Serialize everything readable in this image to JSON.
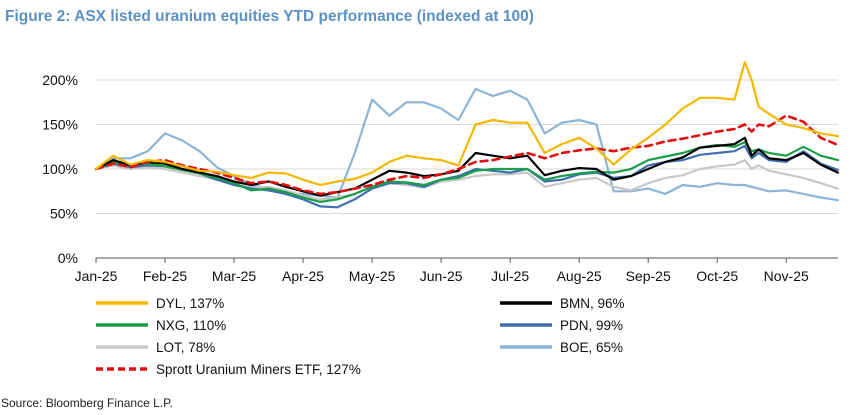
{
  "title": "Figure 2: ASX listed uranium equities YTD performance (indexed at 100)",
  "source": "Source: Bloomberg Finance L.P.",
  "chart_data": {
    "type": "line",
    "title": "Figure 2: ASX listed uranium equities YTD performance (indexed at 100)",
    "xlabel": "",
    "ylabel": "",
    "xlim": [
      0,
      10.75
    ],
    "ylim": [
      0,
      200
    ],
    "x_ticks": [
      "Jan-25",
      "Feb-25",
      "Mar-25",
      "Apr-25",
      "May-25",
      "Jun-25",
      "Jul-25",
      "Aug-25",
      "Sep-25",
      "Oct-25",
      "Nov-25"
    ],
    "y_ticks": [
      0,
      50,
      100,
      150,
      200
    ],
    "y_tick_labels": [
      "0%",
      "50%",
      "100%",
      "150%",
      "200%"
    ],
    "legend_position": "bottom",
    "series": [
      {
        "name": "DYL",
        "label": "DYL, 137%",
        "color": "#f5b800",
        "dashed": false,
        "x": [
          0,
          0.25,
          0.5,
          0.75,
          1,
          1.25,
          1.5,
          1.75,
          2,
          2.25,
          2.5,
          2.75,
          3,
          3.25,
          3.5,
          3.75,
          4,
          4.25,
          4.5,
          4.75,
          5,
          5.25,
          5.5,
          5.75,
          6,
          6.25,
          6.5,
          6.75,
          7,
          7.25,
          7.5,
          7.75,
          8,
          8.25,
          8.5,
          8.75,
          9,
          9.25,
          9.4,
          9.5,
          9.6,
          9.75,
          10,
          10.25,
          10.5,
          10.75
        ],
        "values": [
          100,
          115,
          105,
          110,
          108,
          103,
          98,
          97,
          93,
          90,
          96,
          95,
          88,
          82,
          86,
          89,
          96,
          108,
          115,
          112,
          110,
          104,
          150,
          155,
          152,
          152,
          118,
          128,
          135,
          123,
          105,
          122,
          135,
          150,
          168,
          180,
          180,
          178,
          220,
          200,
          170,
          162,
          150,
          146,
          140,
          137
        ]
      },
      {
        "name": "BMN",
        "label": "BMN, 96%",
        "color": "#000000",
        "dashed": false,
        "x": [
          0,
          0.25,
          0.5,
          0.75,
          1,
          1.25,
          1.5,
          1.75,
          2,
          2.25,
          2.5,
          2.75,
          3,
          3.25,
          3.5,
          3.75,
          4,
          4.25,
          4.5,
          4.75,
          5,
          5.25,
          5.5,
          5.75,
          6,
          6.25,
          6.5,
          6.75,
          7,
          7.25,
          7.5,
          7.75,
          8,
          8.25,
          8.5,
          8.75,
          9,
          9.25,
          9.4,
          9.5,
          9.6,
          9.75,
          10,
          10.25,
          10.5,
          10.75
        ],
        "values": [
          100,
          110,
          104,
          108,
          106,
          100,
          96,
          92,
          86,
          82,
          86,
          80,
          75,
          70,
          74,
          78,
          88,
          98,
          96,
          92,
          94,
          98,
          118,
          115,
          112,
          115,
          93,
          98,
          101,
          100,
          88,
          92,
          100,
          108,
          113,
          124,
          126,
          128,
          135,
          115,
          122,
          112,
          110,
          118,
          105,
          96
        ]
      },
      {
        "name": "NXG",
        "label": "NXG, 110%",
        "color": "#1a9e4a",
        "dashed": false,
        "x": [
          0,
          0.25,
          0.5,
          0.75,
          1,
          1.25,
          1.5,
          1.75,
          2,
          2.25,
          2.5,
          2.75,
          3,
          3.25,
          3.5,
          3.75,
          4,
          4.25,
          4.5,
          4.75,
          5,
          5.25,
          5.5,
          5.75,
          6,
          6.25,
          6.5,
          6.75,
          7,
          7.25,
          7.5,
          7.75,
          8,
          8.25,
          8.5,
          8.75,
          9,
          9.25,
          9.4,
          9.5,
          9.6,
          9.75,
          10,
          10.25,
          10.5,
          10.75
        ],
        "values": [
          100,
          108,
          104,
          106,
          103,
          99,
          95,
          90,
          84,
          76,
          78,
          74,
          68,
          63,
          66,
          72,
          80,
          86,
          85,
          82,
          88,
          90,
          98,
          100,
          100,
          100,
          88,
          92,
          95,
          97,
          96,
          100,
          110,
          114,
          118,
          124,
          127,
          125,
          130,
          120,
          122,
          118,
          115,
          125,
          115,
          110
        ]
      },
      {
        "name": "PDN",
        "label": "PDN, 99%",
        "color": "#3f6faf",
        "dashed": false,
        "x": [
          0,
          0.25,
          0.5,
          0.75,
          1,
          1.25,
          1.5,
          1.75,
          2,
          2.25,
          2.5,
          2.75,
          3,
          3.25,
          3.5,
          3.75,
          4,
          4.25,
          4.5,
          4.75,
          5,
          5.25,
          5.5,
          5.75,
          6,
          6.25,
          6.5,
          6.75,
          7,
          7.25,
          7.5,
          7.75,
          8,
          8.25,
          8.5,
          8.75,
          9,
          9.25,
          9.4,
          9.5,
          9.6,
          9.75,
          10,
          10.25,
          10.5,
          10.75
        ],
        "values": [
          100,
          106,
          102,
          104,
          103,
          99,
          95,
          88,
          82,
          78,
          76,
          72,
          66,
          58,
          57,
          66,
          78,
          84,
          84,
          80,
          88,
          92,
          100,
          98,
          96,
          100,
          86,
          88,
          94,
          96,
          90,
          92,
          104,
          108,
          110,
          116,
          118,
          120,
          126,
          112,
          118,
          110,
          108,
          120,
          106,
          99
        ]
      },
      {
        "name": "LOT",
        "label": "LOT, 78%",
        "color": "#c8c8c8",
        "dashed": false,
        "x": [
          0,
          0.25,
          0.5,
          0.75,
          1,
          1.25,
          1.5,
          1.75,
          2,
          2.25,
          2.5,
          2.75,
          3,
          3.25,
          3.5,
          3.75,
          4,
          4.25,
          4.5,
          4.75,
          5,
          5.25,
          5.5,
          5.75,
          6,
          6.25,
          6.5,
          6.75,
          7,
          7.25,
          7.5,
          7.75,
          8,
          8.25,
          8.5,
          8.75,
          9,
          9.25,
          9.4,
          9.5,
          9.6,
          9.75,
          10,
          10.25,
          10.5,
          10.75
        ],
        "values": [
          100,
          104,
          100,
          102,
          100,
          96,
          92,
          88,
          83,
          79,
          80,
          76,
          70,
          66,
          68,
          72,
          80,
          84,
          82,
          79,
          86,
          88,
          92,
          94,
          94,
          96,
          80,
          84,
          88,
          90,
          80,
          76,
          84,
          90,
          93,
          100,
          103,
          105,
          110,
          100,
          104,
          98,
          94,
          90,
          84,
          78
        ]
      },
      {
        "name": "BOE",
        "label": "BOE, 65%",
        "color": "#8cb4d6",
        "dashed": false,
        "x": [
          0,
          0.25,
          0.5,
          0.75,
          1,
          1.25,
          1.5,
          1.75,
          2,
          2.25,
          2.5,
          2.75,
          3,
          3.25,
          3.5,
          3.75,
          4,
          4.25,
          4.5,
          4.75,
          5,
          5.25,
          5.5,
          5.75,
          6,
          6.25,
          6.5,
          6.75,
          7,
          7.25,
          7.5,
          7.75,
          8,
          8.25,
          8.5,
          8.75,
          9,
          9.25,
          9.4,
          9.5,
          9.6,
          9.75,
          10,
          10.25,
          10.5,
          10.75
        ],
        "values": [
          100,
          112,
          112,
          120,
          140,
          132,
          120,
          102,
          92,
          82,
          78,
          72,
          72,
          70,
          68,
          118,
          178,
          160,
          175,
          175,
          168,
          155,
          190,
          182,
          188,
          178,
          140,
          152,
          155,
          150,
          75,
          75,
          78,
          72,
          82,
          80,
          84,
          82,
          82,
          80,
          78,
          75,
          76,
          72,
          68,
          65
        ]
      },
      {
        "name": "Sprott Uranium Miners ETF",
        "label": "Sprott Uranium Miners ETF, 127%",
        "color": "#e01010",
        "dashed": true,
        "x": [
          0,
          0.25,
          0.5,
          0.75,
          1,
          1.25,
          1.5,
          1.75,
          2,
          2.25,
          2.5,
          2.75,
          3,
          3.25,
          3.5,
          3.75,
          4,
          4.25,
          4.5,
          4.75,
          5,
          5.25,
          5.5,
          5.75,
          6,
          6.25,
          6.5,
          6.75,
          7,
          7.25,
          7.5,
          7.75,
          8,
          8.25,
          8.5,
          8.75,
          9,
          9.25,
          9.4,
          9.5,
          9.6,
          9.75,
          10,
          10.25,
          10.5,
          10.75
        ],
        "values": [
          100,
          106,
          102,
          108,
          110,
          104,
          100,
          96,
          90,
          84,
          86,
          82,
          76,
          72,
          74,
          78,
          82,
          88,
          92,
          90,
          94,
          100,
          108,
          110,
          114,
          118,
          112,
          118,
          121,
          123,
          120,
          124,
          126,
          131,
          134,
          138,
          142,
          145,
          150,
          142,
          150,
          148,
          160,
          153,
          135,
          127
        ]
      }
    ]
  }
}
